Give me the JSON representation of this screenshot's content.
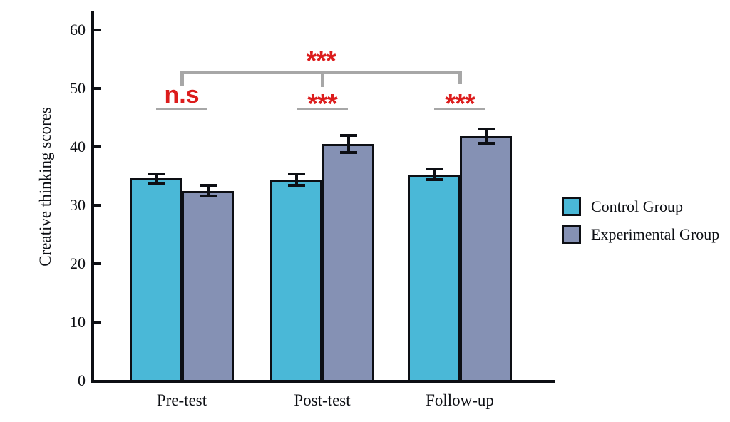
{
  "chart_data": {
    "type": "bar",
    "title": "",
    "xlabel": "",
    "ylabel": "Creative thinking scores",
    "categories": [
      "Pre-test",
      "Post-test",
      "Follow-up"
    ],
    "series": [
      {
        "name": "Control Group",
        "color": "#4ab8d7",
        "values": [
          34.6,
          34.4,
          35.3
        ],
        "errors": [
          0.8,
          1.0,
          0.9
        ]
      },
      {
        "name": "Experimental Group",
        "color": "#8591b4",
        "values": [
          32.5,
          40.5,
          41.8
        ],
        "errors": [
          0.9,
          1.5,
          1.2
        ]
      }
    ],
    "ylim": [
      0,
      63
    ],
    "yticks": [
      0,
      10,
      20,
      30,
      40,
      50,
      60
    ],
    "grid": false,
    "legend_position": "right",
    "bar_border_color": "#0d0f14",
    "error_bar_color": "#0d0f14",
    "significance": {
      "color": "#dc1c1c",
      "line_color": "#a7a7a7",
      "pair_annotations": [
        {
          "category": "Pre-test",
          "label": "n.s"
        },
        {
          "category": "Post-test",
          "label": "***"
        },
        {
          "category": "Follow-up",
          "label": "***"
        }
      ],
      "overall_annotation": {
        "label": "***",
        "from": "Pre-test",
        "to": "Follow-up"
      }
    }
  },
  "legend": {
    "items": [
      {
        "label": "Control Group",
        "color": "#4ab8d7"
      },
      {
        "label": "Experimental Group",
        "color": "#8591b4"
      }
    ]
  }
}
